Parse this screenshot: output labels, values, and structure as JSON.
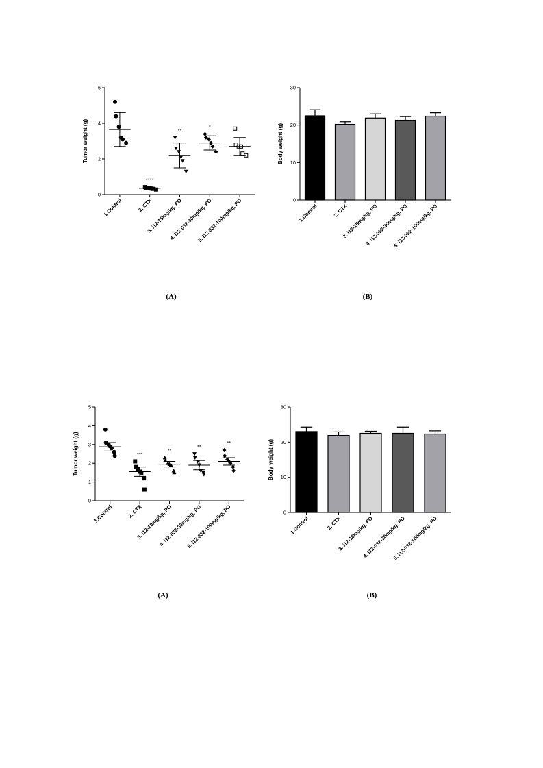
{
  "chart_data": [
    {
      "type": "scatter",
      "ylabel": "Tumor weight (g)",
      "ylim": [
        0,
        6
      ],
      "yticks": [
        0,
        2,
        4,
        6
      ],
      "caption": "(A)",
      "categories": [
        "1.Control",
        "2. CTX",
        "3. i12-15mg/kg, PO",
        "4. i12-032-30mg/kg, PO",
        "5. i12-032-100mg/kg, PO"
      ],
      "groups": [
        {
          "marker": "circle",
          "points": [
            5.2,
            4.4,
            3.8,
            3.2,
            3.1,
            2.9
          ],
          "mean": 3.65,
          "err_low": 2.7,
          "err_high": 4.6,
          "sig": ""
        },
        {
          "marker": "square",
          "points": [
            0.42,
            0.38,
            0.36,
            0.34,
            0.32,
            0.28
          ],
          "mean": 0.35,
          "err_low": 0.29,
          "err_high": 0.41,
          "sig": "****"
        },
        {
          "marker": "triangle-down",
          "points": [
            3.2,
            2.6,
            2.4,
            2.1,
            1.9,
            1.3
          ],
          "mean": 2.2,
          "err_low": 1.5,
          "err_high": 2.9,
          "sig": "**"
        },
        {
          "marker": "diamond",
          "points": [
            3.4,
            3.2,
            3.1,
            2.9,
            2.7,
            2.4
          ],
          "mean": 2.9,
          "err_low": 2.5,
          "err_high": 3.3,
          "sig": "*"
        },
        {
          "marker": "open-square",
          "points": [
            3.7,
            2.8,
            2.7,
            2.7,
            2.3,
            2.2
          ],
          "mean": 2.7,
          "err_low": 2.2,
          "err_high": 3.2,
          "sig": ""
        }
      ]
    },
    {
      "type": "bar",
      "ylabel": "Body weight (g)",
      "ylim": [
        0,
        30
      ],
      "yticks": [
        0,
        10,
        20,
        30
      ],
      "caption": "(B)",
      "categories": [
        "1.Control",
        "2. CTX",
        "3. i12-15mg/kg, PO",
        "4. i12-032-30mg/kg, PO",
        "5. i12-032-100mg/kg, PO"
      ],
      "values": [
        22.5,
        20.2,
        21.9,
        21.3,
        22.4
      ],
      "errors": [
        1.6,
        0.7,
        1.1,
        1.0,
        0.9
      ],
      "colors": [
        "#000000",
        "#a3a2a8",
        "#d6d6d6",
        "#595959",
        "#a3a2a8"
      ]
    },
    {
      "type": "scatter",
      "ylabel": "Tumor weight (g)",
      "ylim": [
        0,
        5
      ],
      "yticks": [
        0,
        1,
        2,
        3,
        4,
        5
      ],
      "caption": "(A)",
      "categories": [
        "1.Control",
        "2. CTX",
        "3. i12-10mg/kg, PO",
        "4. i12-032-30mg/kg, PO",
        "5. i12-032-100mg/kg, PO"
      ],
      "groups": [
        {
          "marker": "circle",
          "points": [
            3.8,
            3.1,
            3.0,
            2.9,
            2.8,
            2.6,
            2.4
          ],
          "mean": 2.88,
          "err_low": 2.65,
          "err_high": 3.1,
          "sig": ""
        },
        {
          "marker": "square",
          "points": [
            2.1,
            1.8,
            1.7,
            1.55,
            1.5,
            1.2,
            0.6
          ],
          "mean": 1.55,
          "err_low": 1.3,
          "err_high": 1.8,
          "sig": "***"
        },
        {
          "marker": "triangle-up",
          "points": [
            2.3,
            2.15,
            2.0,
            1.95,
            1.9,
            1.6,
            1.5
          ],
          "mean": 1.95,
          "err_low": 1.8,
          "err_high": 2.1,
          "sig": "**"
        },
        {
          "marker": "triangle-down",
          "points": [
            2.5,
            2.3,
            2.1,
            1.9,
            1.6,
            1.5,
            1.4
          ],
          "mean": 1.9,
          "err_low": 1.65,
          "err_high": 2.15,
          "sig": "**"
        },
        {
          "marker": "diamond",
          "points": [
            2.7,
            2.4,
            2.2,
            2.1,
            2.0,
            1.8,
            1.6
          ],
          "mean": 2.1,
          "err_low": 1.9,
          "err_high": 2.3,
          "sig": "**"
        }
      ]
    },
    {
      "type": "bar",
      "ylabel": "Body weight (g)",
      "ylim": [
        0,
        30
      ],
      "yticks": [
        0,
        10,
        20,
        30
      ],
      "caption": "(B)",
      "categories": [
        "1.Control",
        "2. CTX",
        "3. i12-10mg/kg, PO",
        "4. i12-032-30mg/kg, PO",
        "5. i12-032-100mg/kg, PO"
      ],
      "values": [
        23.0,
        21.9,
        22.5,
        22.5,
        22.3
      ],
      "errors": [
        1.3,
        1.0,
        0.6,
        1.8,
        0.9
      ],
      "colors": [
        "#000000",
        "#a3a2a8",
        "#d6d6d6",
        "#595959",
        "#a3a2a8"
      ]
    }
  ]
}
